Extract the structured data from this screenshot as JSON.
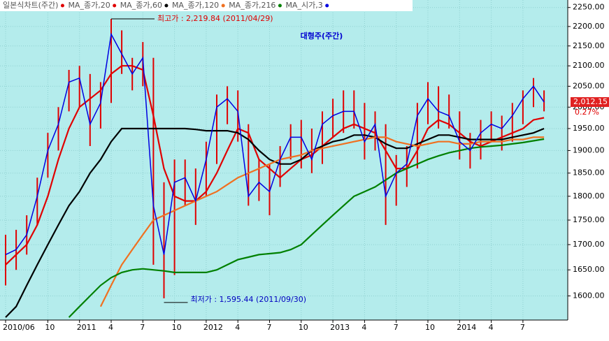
{
  "chart_data": {
    "type": "stock",
    "title": "대형주(주간)",
    "categories": [
      "2010/06",
      null,
      null,
      null,
      "10",
      null,
      null,
      "2011",
      null,
      null,
      "4",
      null,
      null,
      "7",
      null,
      null,
      "10",
      null,
      null,
      "2012",
      null,
      null,
      "4",
      null,
      null,
      "7",
      null,
      null,
      "10",
      null,
      null,
      "2013",
      null,
      null,
      "4",
      null,
      null,
      "7",
      null,
      null,
      "10",
      null,
      null,
      "2014",
      null,
      null,
      "4",
      null,
      null,
      "7",
      null,
      null
    ],
    "candles": {
      "name": "일본식차트(주간)",
      "color": "#e00000",
      "high": [
        1720,
        1730,
        1760,
        1840,
        1940,
        2000,
        2090,
        2100,
        2080,
        2060,
        2219.84,
        2190,
        2120,
        2160,
        2120,
        1830,
        1880,
        1880,
        1860,
        1920,
        2030,
        2050,
        2040,
        1960,
        1880,
        1870,
        1910,
        1960,
        1970,
        1950,
        1990,
        2020,
        2040,
        2040,
        2010,
        1990,
        1960,
        1890,
        1910,
        2010,
        2060,
        2050,
        2030,
        1990,
        1940,
        1970,
        1990,
        1980,
        2010,
        2040,
        2070,
        2040
      ],
      "low": [
        1620,
        1650,
        1680,
        1740,
        1840,
        1900,
        1990,
        2000,
        1910,
        1950,
        2010,
        2080,
        2040,
        2050,
        1660,
        1595.44,
        1640,
        1780,
        1740,
        1800,
        1870,
        1960,
        1920,
        1780,
        1790,
        1760,
        1820,
        1880,
        1860,
        1850,
        1870,
        1930,
        1940,
        1950,
        1880,
        1900,
        1740,
        1780,
        1820,
        1860,
        1960,
        1950,
        1950,
        1880,
        1860,
        1880,
        1920,
        1900,
        1920,
        1960,
        2000,
        1990
      ]
    },
    "series": [
      {
        "name": "MA_종가,20",
        "color": "#e00000",
        "values": [
          1660,
          1680,
          1700,
          1740,
          1800,
          1880,
          1950,
          2000,
          2020,
          2040,
          2080,
          2100,
          2100,
          2090,
          1980,
          1860,
          1800,
          1790,
          1790,
          1810,
          1850,
          1900,
          1950,
          1940,
          1880,
          1860,
          1840,
          1860,
          1880,
          1890,
          1910,
          1930,
          1950,
          1960,
          1950,
          1940,
          1900,
          1860,
          1860,
          1900,
          1950,
          1970,
          1960,
          1940,
          1920,
          1910,
          1920,
          1930,
          1940,
          1950,
          1970,
          1975
        ]
      },
      {
        "name": "MA_종가,60",
        "color": "#000000",
        "values": [
          1560,
          1580,
          1620,
          1660,
          1700,
          1740,
          1780,
          1810,
          1850,
          1880,
          1920,
          1950,
          1950,
          1950,
          1950,
          1950,
          1950,
          1950,
          1948,
          1945,
          1945,
          1945,
          1940,
          1925,
          1900,
          1880,
          1870,
          1870,
          1880,
          1900,
          1910,
          1920,
          1925,
          1935,
          1935,
          1930,
          1915,
          1905,
          1905,
          1915,
          1925,
          1935,
          1935,
          1930,
          1925,
          1925,
          1925,
          1925,
          1930,
          1935,
          1940,
          1950
        ]
      },
      {
        "name": "MA_종가,120",
        "color": "#f07020",
        "values": [
          null,
          null,
          null,
          null,
          null,
          null,
          null,
          null,
          null,
          1580,
          1620,
          1660,
          1690,
          1720,
          1750,
          1760,
          1770,
          1780,
          1790,
          1800,
          1810,
          1825,
          1840,
          1850,
          1860,
          1870,
          1880,
          1885,
          1890,
          1900,
          1905,
          1910,
          1915,
          1920,
          1925,
          1930,
          1930,
          1920,
          1915,
          1910,
          1915,
          1920,
          1920,
          1915,
          1915,
          1920,
          1920,
          1920,
          1925,
          1925,
          1930,
          1930
        ]
      },
      {
        "name": "MA_종가,216",
        "color": "#008000",
        "values": [
          null,
          null,
          null,
          null,
          null,
          null,
          1560,
          1580,
          1600,
          1620,
          1635,
          1645,
          1650,
          1652,
          1650,
          1648,
          1645,
          1645,
          1645,
          1645,
          1650,
          1660,
          1670,
          1675,
          1680,
          1682,
          1684,
          1690,
          1700,
          1720,
          1740,
          1760,
          1780,
          1800,
          1810,
          1820,
          1835,
          1850,
          1860,
          1870,
          1880,
          1888,
          1895,
          1900,
          1905,
          1908,
          1910,
          1912,
          1915,
          1918,
          1922,
          1926
        ]
      },
      {
        "name": "MA_시가,3",
        "color": "#0000e0",
        "values": [
          1680,
          1690,
          1720,
          1800,
          1900,
          1960,
          2060,
          2070,
          1960,
          2010,
          2180,
          2130,
          2080,
          2120,
          1780,
          1680,
          1830,
          1840,
          1790,
          1880,
          2000,
          2020,
          1990,
          1800,
          1830,
          1810,
          1880,
          1930,
          1930,
          1880,
          1960,
          1980,
          1990,
          1990,
          1920,
          1960,
          1800,
          1850,
          1870,
          1980,
          2020,
          1990,
          1980,
          1920,
          1900,
          1940,
          1960,
          1950,
          1980,
          2020,
          2050,
          2012
        ]
      }
    ],
    "annotations": [
      "최고가 : 2,219.84 (2011/04/29)",
      "최저가 : 1,595.44 (2011/09/30)"
    ],
    "last_label": "2,012.15",
    "change_label": "0.27%",
    "log_scale": true,
    "grid": true,
    "ylim": [
      1555,
      2270
    ],
    "yticks": [
      {
        "value": 1600,
        "label": "1600.00"
      },
      {
        "value": 1650,
        "label": "1650.00"
      },
      {
        "value": 1700,
        "label": "1700.00"
      },
      {
        "value": 1750,
        "label": "1750.00"
      },
      {
        "value": 1800,
        "label": "1800.00"
      },
      {
        "value": 1850,
        "label": "1850.00"
      },
      {
        "value": 1900,
        "label": "1900.00"
      },
      {
        "value": 1950,
        "label": "1950.00"
      },
      {
        "value": 2000,
        "label": "2000.00"
      },
      {
        "value": 2050,
        "label": "2050.00"
      },
      {
        "value": 2100,
        "label": "2100.00"
      },
      {
        "value": 2150,
        "label": "2150.00"
      },
      {
        "value": 2200,
        "label": "2200.00"
      },
      {
        "value": 2250,
        "label": "2250.00"
      }
    ]
  }
}
